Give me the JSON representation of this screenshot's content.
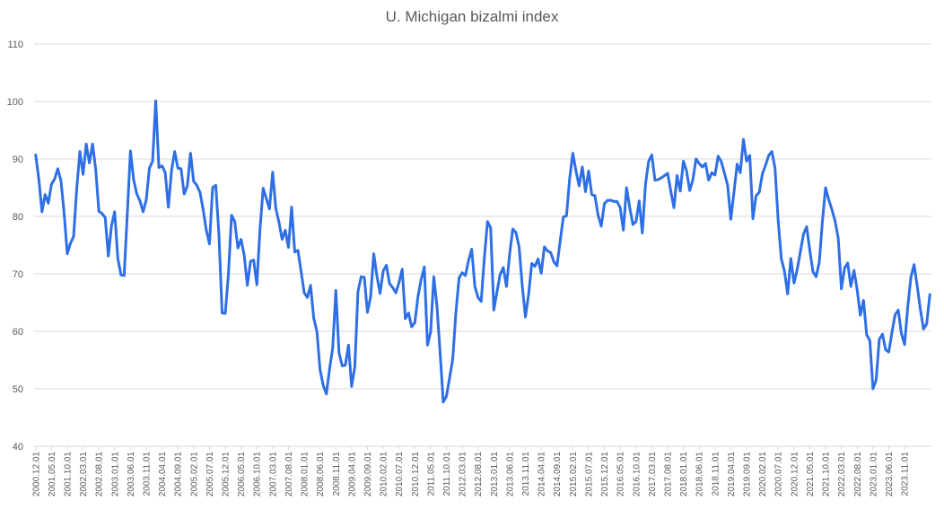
{
  "chart_data": {
    "type": "line",
    "title": "U. Michigan bizalmi index",
    "xlabel": "",
    "ylabel": "",
    "ylim": [
      40,
      110
    ],
    "yticks": [
      40,
      50,
      60,
      70,
      80,
      90,
      100,
      110
    ],
    "grid": true,
    "legend": "none",
    "line_color": "#2e6fe6",
    "x_start": "2000.12",
    "x_end": "2023.12",
    "xtick_labels": [
      "2000.12.01",
      "2001.05.01",
      "2001.10.01",
      "2002.03.01",
      "2002.08.01",
      "2003.01.01",
      "2003.06.01",
      "2003.11.01",
      "2004.04.01",
      "2004.09.01",
      "2005.02.01",
      "2005.07.01",
      "2005.12.01",
      "2006.05.01",
      "2006.10.01",
      "2007.03.01",
      "2007.08.01",
      "2008.01.01",
      "2008.06.01",
      "2008.11.01",
      "2009.04.01",
      "2009.09.01",
      "2010.02.01",
      "2010.07.01",
      "2010.12.01",
      "2011.05.01",
      "2011.10.01",
      "2012.03.01",
      "2012.08.01",
      "2013.01.01",
      "2013.06.01",
      "2013.11.01",
      "2014.04.01",
      "2014.09.01",
      "2015.02.01",
      "2015.07.01",
      "2015.12.01",
      "2016.05.01",
      "2016.10.01",
      "2017.03.01",
      "2017.08.01",
      "2018.01.01",
      "2018.06.01",
      "2018.11.01",
      "2019.04.01",
      "2019.09.01",
      "2020.02.01",
      "2020.07.01",
      "2020.12.01",
      "2021.05.01",
      "2021.10.01",
      "2022.03.01",
      "2022.08.01",
      "2023.01.01",
      "2023.06.01",
      "2023.11.01"
    ],
    "values": [
      90.7,
      86.5,
      80.8,
      83.8,
      82.3,
      85.6,
      86.5,
      88.3,
      86.2,
      80.6,
      73.5,
      75.3,
      76.5,
      84.9,
      91.3,
      87.3,
      92.6,
      89.3,
      92.6,
      88.2,
      80.9,
      80.5,
      79.8,
      73.1,
      78.4,
      80.8,
      72.7,
      69.8,
      69.7,
      80.5,
      91.4,
      86.4,
      83.9,
      82.7,
      80.8,
      82.9,
      88.4,
      89.6,
      100.1,
      88.5,
      88.8,
      87.6,
      81.6,
      88.0,
      91.3,
      88.4,
      88.3,
      83.9,
      85.3,
      91.0,
      86.1,
      85.4,
      84.2,
      81.2,
      77.6,
      75.2,
      85.0,
      85.4,
      76.8,
      63.2,
      63.1,
      69.9,
      80.2,
      79.1,
      74.5,
      76.0,
      73.2,
      68.0,
      72.2,
      72.4,
      68.1,
      77.8,
      84.9,
      83.1,
      81.3,
      87.7,
      81.4,
      79.0,
      76.0,
      77.6,
      74.6,
      81.6,
      73.8,
      74.1,
      70.4,
      66.7,
      65.9,
      68.0,
      62.3,
      60.0,
      53.3,
      50.6,
      49.1,
      53.4,
      57.1,
      67.1,
      56.3,
      54.0,
      54.1,
      57.6,
      50.4,
      53.8,
      66.9,
      69.5,
      69.4,
      63.3,
      66.0,
      73.5,
      69.6,
      66.6,
      70.5,
      71.5,
      68.3,
      67.6,
      66.7,
      68.5,
      70.8,
      62.2,
      63.2,
      60.8,
      61.5,
      66.1,
      69.0,
      71.2,
      57.6,
      59.9,
      69.5,
      64.4,
      56.3,
      47.7,
      48.7,
      51.9,
      55.2,
      63.3,
      69.3,
      70.2,
      69.7,
      72.3,
      74.3,
      67.8,
      65.9,
      65.2,
      72.8,
      79.1,
      78.0,
      63.7,
      66.9,
      69.9,
      71.1,
      67.8,
      73.4,
      77.8,
      77.2,
      74.7,
      67.9,
      62.5,
      66.4,
      71.8,
      71.3,
      72.6,
      70.1,
      74.7,
      74.0,
      73.7,
      72.1,
      71.4,
      75.7,
      79.9,
      80.1,
      86.6,
      91.0,
      87.9,
      85.3,
      88.6,
      84.3,
      87.9,
      83.8,
      83.6,
      80.2,
      78.3,
      82.2,
      82.8,
      82.8,
      82.6,
      82.6,
      81.5,
      77.6,
      85.0,
      81.6,
      78.6,
      79.1,
      82.7,
      77.1,
      85.6,
      89.6,
      90.7,
      86.3,
      86.4,
      86.7,
      87.1,
      87.5,
      84.4,
      81.5,
      87.1,
      84.4,
      89.6,
      87.9,
      84.5,
      86.4,
      90.0,
      89.2,
      88.6,
      89.2,
      86.3,
      87.6,
      87.2,
      90.5,
      89.5,
      87.5,
      85.4,
      79.5,
      84.2,
      89.1,
      87.6,
      93.4,
      89.6,
      90.6,
      79.6,
      83.6,
      84.2,
      87.4,
      88.9,
      90.6,
      91.3,
      88.4,
      79.2,
      72.6,
      70.4,
      66.5,
      72.7,
      68.4,
      70.7,
      73.8,
      76.9,
      78.2,
      74.1,
      70.4,
      69.5,
      72.0,
      79.2,
      85.0,
      82.9,
      81.2,
      79.2,
      76.2,
      67.4,
      71.0,
      71.9,
      67.8,
      70.6,
      67.2,
      62.8,
      65.4,
      59.4,
      58.4,
      50.0,
      51.5,
      58.6,
      59.5,
      56.8,
      56.4,
      59.8,
      62.9,
      63.7,
      59.6,
      57.7,
      64.2,
      69.4,
      71.6,
      67.9,
      63.8,
      60.4,
      61.3,
      66.4
    ]
  }
}
